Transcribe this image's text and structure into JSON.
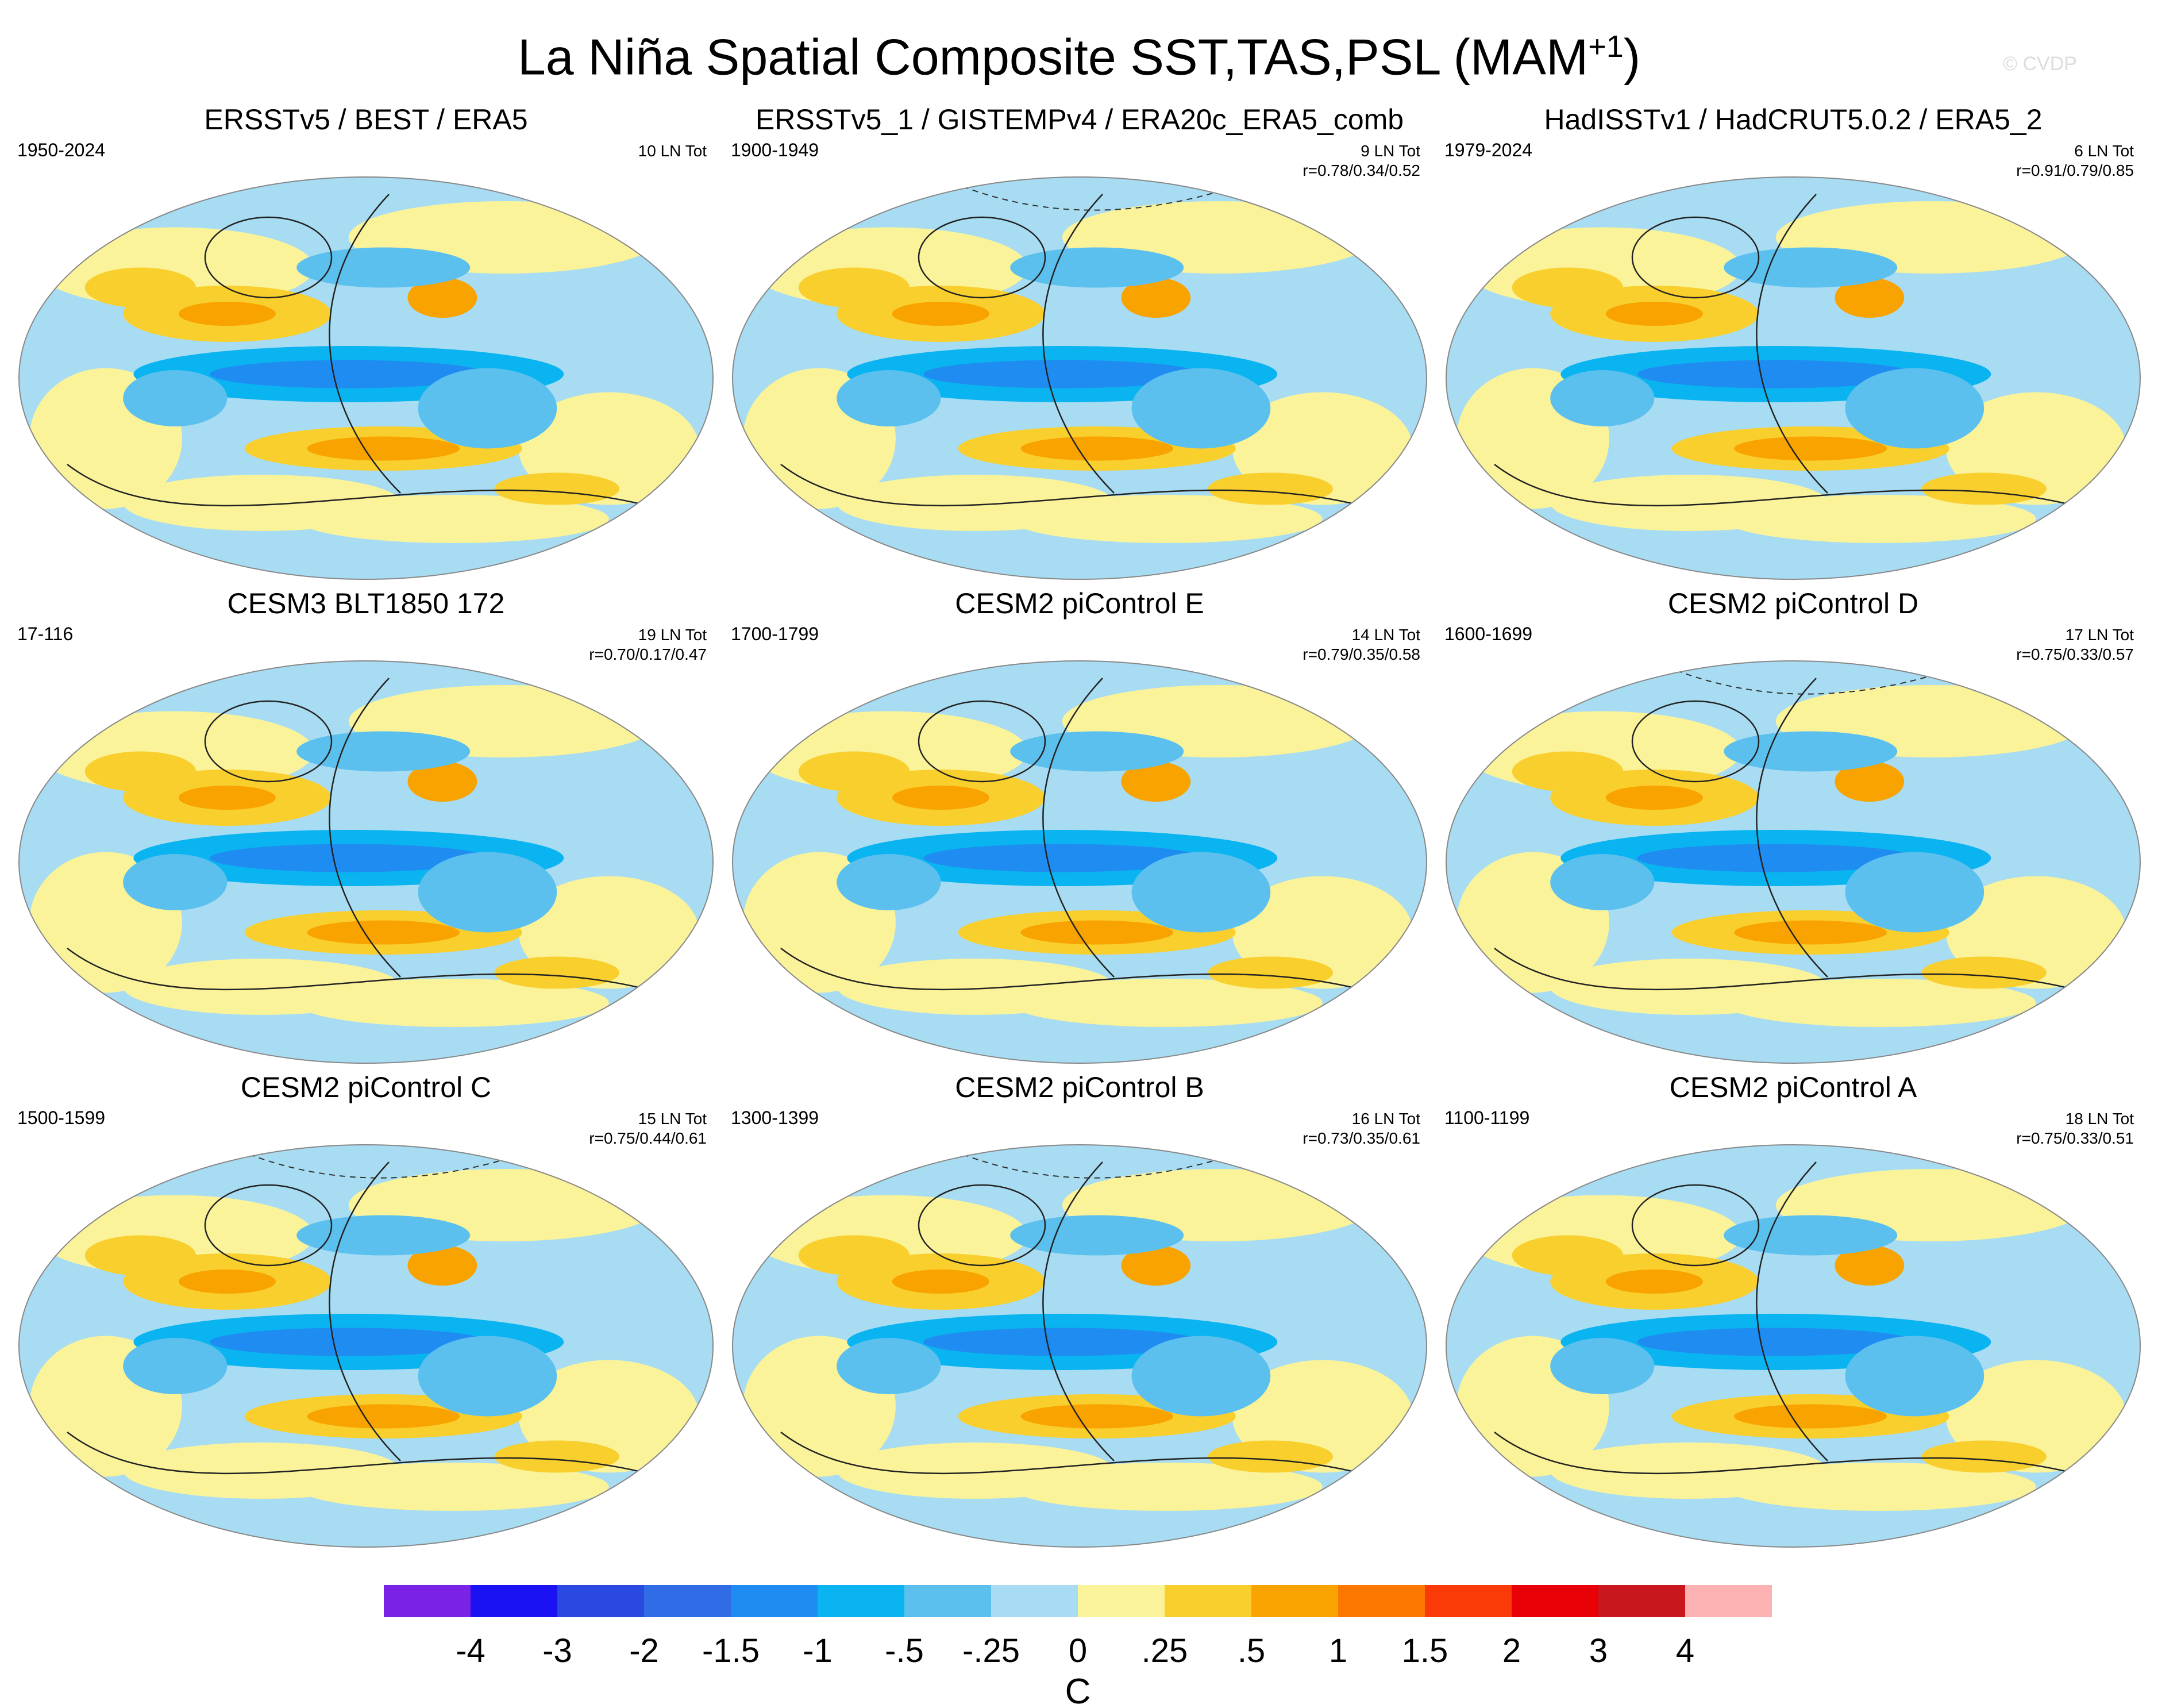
{
  "title": "La Niña Spatial Composite SST,TAS,PSL (MAM",
  "title_sup": "+1",
  "title_close": ")",
  "watermark": "© CVDP",
  "chart_data": {
    "type": "heatmap",
    "title": "La Niña Spatial Composite SST,TAS,PSL (MAM+1)",
    "units": "C",
    "colorbar": {
      "tick_labels": [
        "-4",
        "-3",
        "-2",
        "-1.5",
        "-1",
        "-.5",
        "-.25",
        "0",
        ".25",
        ".5",
        "1",
        "1.5",
        "2",
        "3",
        "4"
      ],
      "colors": [
        "#7a22e6",
        "#1a12f2",
        "#2a49e0",
        "#2f6ce6",
        "#1f8cf2",
        "#0ab4f0",
        "#5cc0ee",
        "#a8dcf2",
        "#faf39a",
        "#f9cf2e",
        "#f8a300",
        "#fa7800",
        "#fb3a08",
        "#e70006",
        "#c8171d",
        "#fcb2b2"
      ]
    },
    "panels": [
      {
        "title": "ERSSTv5 / BEST / ERA5",
        "years": "1950-2024",
        "events": "10 LN Tot",
        "corr": "",
        "dashed_arctic": false
      },
      {
        "title": "ERSSTv5_1 / GISTEMPv4 / ERA20c_ERA5_comb",
        "years": "1900-1949",
        "events": "9 LN Tot",
        "corr": "r=0.78/0.34/0.52",
        "dashed_arctic": true
      },
      {
        "title": "HadISSTv1 / HadCRUT5.0.2 / ERA5_2",
        "years": "1979-2024",
        "events": "6 LN Tot",
        "corr": "r=0.91/0.79/0.85",
        "dashed_arctic": false
      },
      {
        "title": "CESM3 BLT1850 172",
        "years": "17-116",
        "events": "19 LN Tot",
        "corr": "r=0.70/0.17/0.47",
        "dashed_arctic": false
      },
      {
        "title": "CESM2 piControl E",
        "years": "1700-1799",
        "events": "14 LN Tot",
        "corr": "r=0.79/0.35/0.58",
        "dashed_arctic": false
      },
      {
        "title": "CESM2 piControl D",
        "years": "1600-1699",
        "events": "17 LN Tot",
        "corr": "r=0.75/0.33/0.57",
        "dashed_arctic": true
      },
      {
        "title": "CESM2 piControl C",
        "years": "1500-1599",
        "events": "15 LN Tot",
        "corr": "r=0.75/0.44/0.61",
        "dashed_arctic": true
      },
      {
        "title": "CESM2 piControl B",
        "years": "1300-1399",
        "events": "16 LN Tot",
        "corr": "r=0.73/0.35/0.61",
        "dashed_arctic": true
      },
      {
        "title": "CESM2 piControl A",
        "years": "1100-1199",
        "events": "18 LN Tot",
        "corr": "r=0.75/0.33/0.51",
        "dashed_arctic": false
      }
    ]
  }
}
